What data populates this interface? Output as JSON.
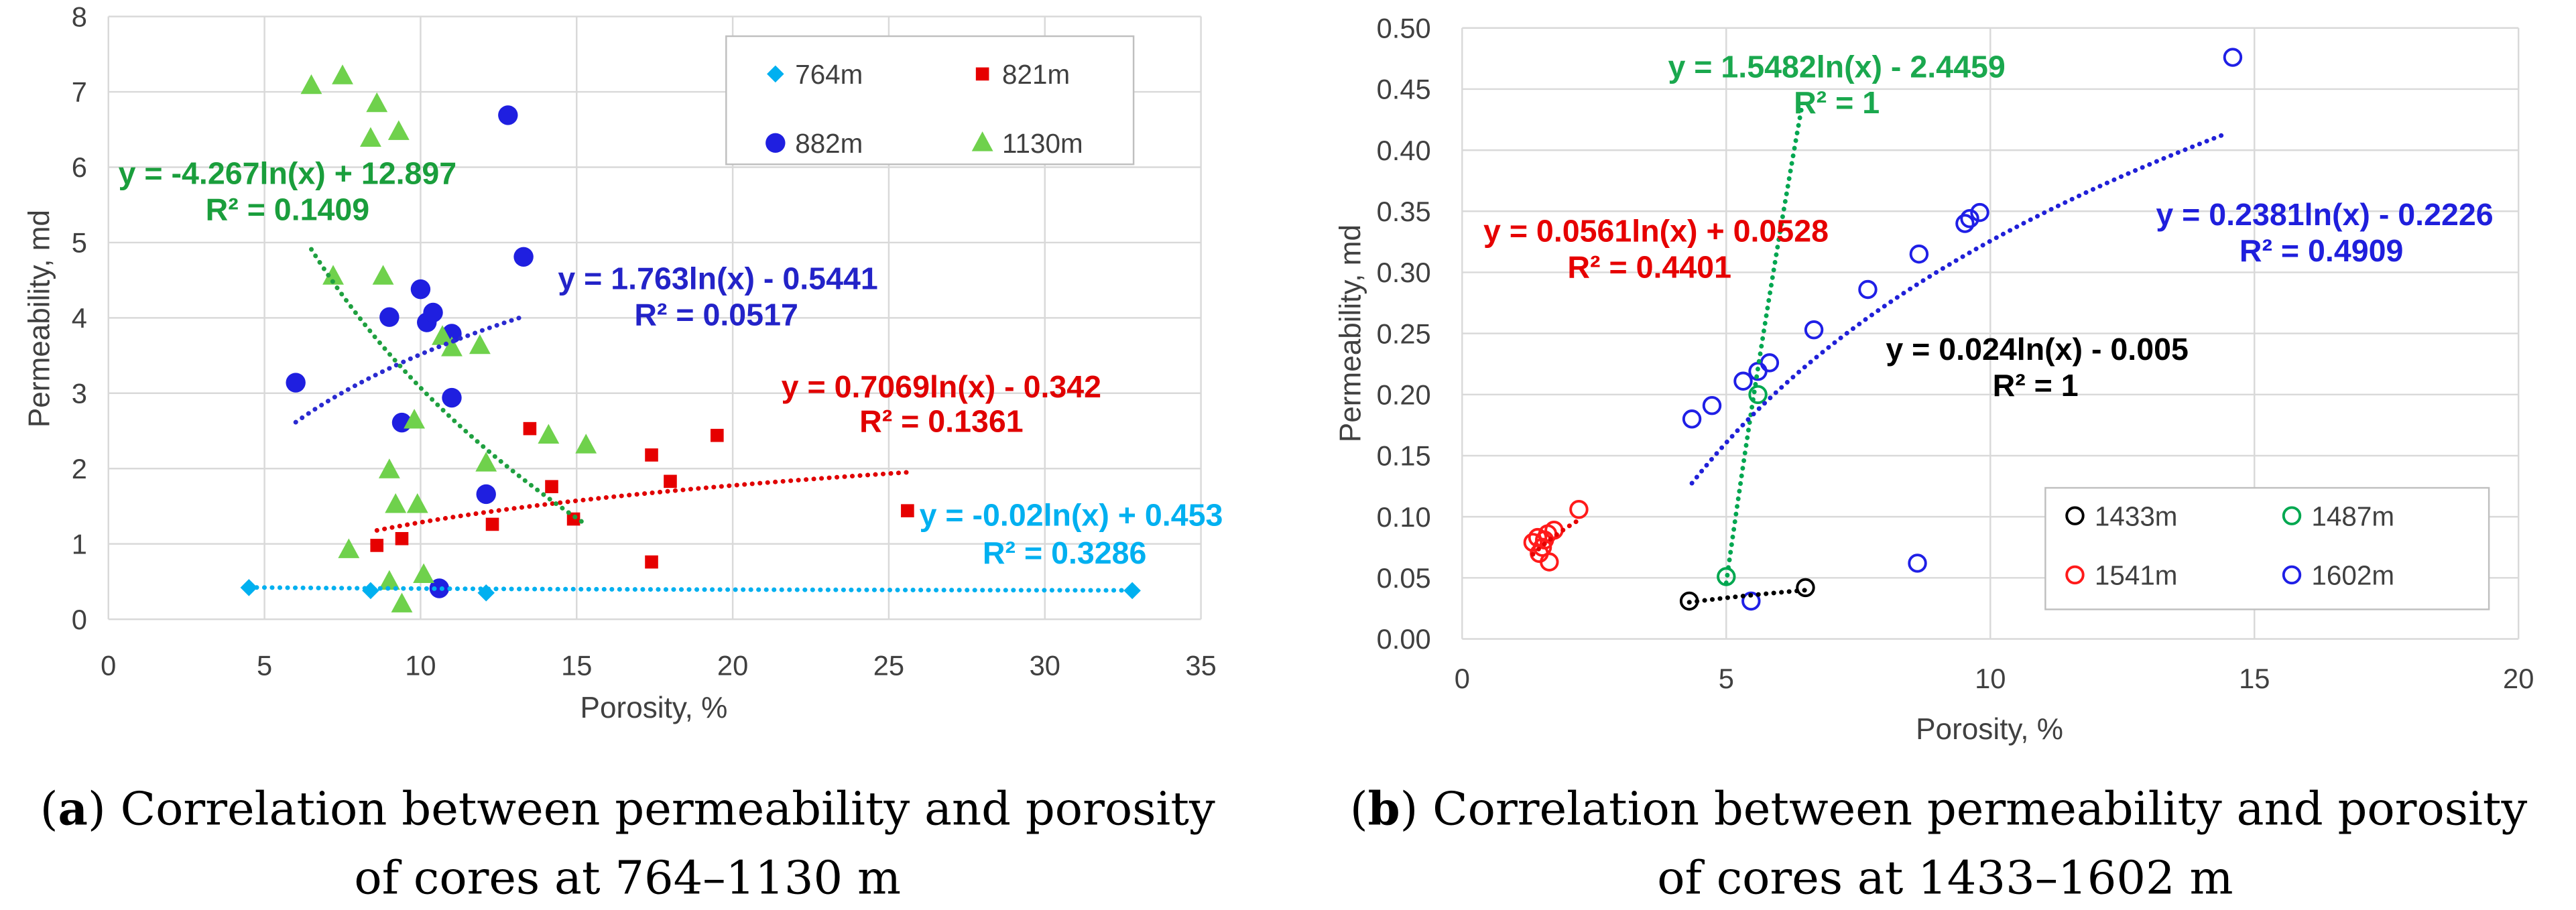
{
  "chart_data": [
    {
      "type": "scatter",
      "xlabel": "Porosity, %",
      "ylabel": "Permeability, md",
      "xlim": [
        0,
        35
      ],
      "ylim": [
        0,
        8
      ],
      "xticks": [
        0,
        5,
        10,
        15,
        20,
        25,
        30,
        35
      ],
      "xtick_labels": [
        "0",
        "5",
        "10",
        "15",
        "20",
        "25",
        "30",
        "35"
      ],
      "yticks": [
        0,
        1,
        2,
        3,
        4,
        5,
        6,
        7,
        8
      ],
      "ytick_labels": [
        "0",
        "1",
        "2",
        "3",
        "4",
        "5",
        "6",
        "7",
        "8"
      ],
      "grid": true,
      "legend_position": "top-right",
      "series": [
        {
          "name": "764m",
          "marker": "diamond",
          "filled": true,
          "color": "#00B0F0",
          "trend_color": "#00B0F0",
          "label_color": "#00B0F0",
          "points": [
            [
              4.5,
              0.42
            ],
            [
              8.4,
              0.38
            ],
            [
              12.1,
              0.35
            ],
            [
              32.8,
              0.38
            ]
          ],
          "trend": {
            "type": "log",
            "a": -0.02,
            "b": 0.453,
            "x_range": [
              4.5,
              32.8
            ]
          },
          "equation": "y = -0.02ln(x) + 0.453",
          "r2": "R² = 0.3286"
        },
        {
          "name": "821m",
          "marker": "square",
          "filled": true,
          "color": "#E60000",
          "trend_color": "#E00000",
          "label_color": "#E00000",
          "points": [
            [
              8.6,
              0.98
            ],
            [
              9.4,
              1.07
            ],
            [
              12.3,
              1.26
            ],
            [
              13.5,
              2.53
            ],
            [
              14.2,
              1.76
            ],
            [
              14.9,
              1.33
            ],
            [
              17.4,
              2.18
            ],
            [
              17.4,
              0.76
            ],
            [
              18.0,
              1.83
            ],
            [
              19.5,
              2.44
            ],
            [
              25.6,
              1.44
            ]
          ],
          "trend": {
            "type": "log",
            "a": 0.7069,
            "b": -0.342,
            "x_range": [
              8.6,
              25.6
            ]
          },
          "equation": "y = 0.7069ln(x) - 0.342",
          "r2": "R² = 0.1361"
        },
        {
          "name": "882m",
          "marker": "circle",
          "filled": true,
          "color": "#1F1FE0",
          "trend_color": "#2A2AD0",
          "label_color": "#2323C8",
          "points": [
            [
              6.0,
              3.14
            ],
            [
              9.0,
              4.01
            ],
            [
              9.4,
              2.61
            ],
            [
              10.0,
              4.38
            ],
            [
              10.2,
              3.94
            ],
            [
              10.4,
              4.07
            ],
            [
              11.0,
              3.79
            ],
            [
              11.0,
              2.94
            ],
            [
              12.1,
              1.66
            ],
            [
              10.6,
              0.41
            ],
            [
              12.8,
              6.69
            ],
            [
              13.3,
              4.81
            ]
          ],
          "trend": {
            "type": "log",
            "a": 1.763,
            "b": -0.5441,
            "x_range": [
              6.0,
              13.3
            ]
          },
          "equation": "y = 1.763ln(x) - 0.5441",
          "r2": "R² = 0.0517"
        },
        {
          "name": "1130m",
          "marker": "triangle",
          "filled": true,
          "color": "#6FD14C",
          "trend_color": "#1FA040",
          "label_color": "#1A9E3C",
          "points": [
            [
              6.5,
              7.08
            ],
            [
              7.5,
              7.21
            ],
            [
              8.6,
              6.84
            ],
            [
              9.3,
              6.47
            ],
            [
              8.4,
              6.38
            ],
            [
              7.2,
              4.55
            ],
            [
              8.8,
              4.55
            ],
            [
              9.0,
              1.98
            ],
            [
              9.2,
              1.52
            ],
            [
              9.9,
              1.52
            ],
            [
              7.7,
              0.92
            ],
            [
              9.0,
              0.5
            ],
            [
              9.4,
              0.2
            ],
            [
              10.1,
              0.59
            ],
            [
              9.8,
              2.64
            ],
            [
              10.7,
              3.75
            ],
            [
              11.0,
              3.6
            ],
            [
              11.9,
              3.63
            ],
            [
              12.1,
              2.07
            ],
            [
              14.1,
              2.44
            ],
            [
              15.3,
              2.31
            ]
          ],
          "trend": {
            "type": "log",
            "a": -4.267,
            "b": 12.897,
            "x_range": [
              6.5,
              15.3
            ]
          },
          "equation": "y = -4.267ln(x) + 12.897",
          "r2": "R² = 0.1409"
        }
      ]
    },
    {
      "type": "scatter",
      "xlabel": "Porosity, %",
      "ylabel": "Permeability, md",
      "xlim": [
        0,
        20
      ],
      "ylim": [
        0,
        0.5
      ],
      "xticks": [
        0,
        5,
        10,
        15,
        20
      ],
      "xtick_labels": [
        "0",
        "5",
        "10",
        "15",
        "20"
      ],
      "yticks": [
        0,
        0.05,
        0.1,
        0.15,
        0.2,
        0.25,
        0.3,
        0.35,
        0.4,
        0.45,
        0.5
      ],
      "ytick_labels": [
        "0.00",
        "0.05",
        "0.10",
        "0.15",
        "0.20",
        "0.25",
        "0.30",
        "0.35",
        "0.40",
        "0.45",
        "0.50"
      ],
      "grid": true,
      "legend_position": "bottom-right",
      "series": [
        {
          "name": "1433m",
          "marker": "circle",
          "filled": false,
          "color": "#000000",
          "trend_color": "#000000",
          "label_color": "#000000",
          "points": [
            [
              4.3,
              0.031
            ],
            [
              6.5,
              0.042
            ]
          ],
          "trend": {
            "type": "log",
            "a": 0.024,
            "b": -0.005,
            "x_range": [
              4.3,
              6.5
            ]
          },
          "equation": "y = 0.024ln(x) - 0.005",
          "r2": "R² = 1"
        },
        {
          "name": "1487m",
          "marker": "circle",
          "filled": false,
          "color": "#00A850",
          "trend_color": "#00A650",
          "label_color": "#1AA84E",
          "points": [
            [
              5.0,
              0.051
            ],
            [
              5.6,
              0.2
            ]
          ],
          "trend": {
            "type": "log",
            "a": 1.5482,
            "b": -2.4459,
            "x_range": [
              5.0,
              6.44
            ]
          },
          "equation": "y = 1.5482ln(x) - 2.4459",
          "r2": "R² = 1"
        },
        {
          "name": "1541m",
          "marker": "circle",
          "filled": false,
          "color": "#FF1A1A",
          "trend_color": "#E60000",
          "label_color": "#E60000",
          "points": [
            [
              1.34,
              0.079
            ],
            [
              1.43,
              0.083
            ],
            [
              1.52,
              0.075
            ],
            [
              1.46,
              0.07
            ],
            [
              1.62,
              0.086
            ],
            [
              1.74,
              0.089
            ],
            [
              1.65,
              0.063
            ],
            [
              1.56,
              0.081
            ],
            [
              2.21,
              0.106
            ]
          ],
          "trend": {
            "type": "log",
            "a": 0.0561,
            "b": 0.0528,
            "x_range": [
              1.34,
              2.21
            ]
          },
          "equation": "y = 0.0561ln(x) + 0.0528",
          "r2": "R² = 0.4401"
        },
        {
          "name": "1602m",
          "marker": "circle",
          "filled": false,
          "color": "#1F1FE6",
          "trend_color": "#2020D8",
          "label_color": "#1F1FDC",
          "points": [
            [
              4.35,
              0.18
            ],
            [
              4.73,
              0.191
            ],
            [
              5.32,
              0.211
            ],
            [
              5.6,
              0.219
            ],
            [
              5.82,
              0.226
            ],
            [
              5.47,
              0.031
            ],
            [
              6.66,
              0.253
            ],
            [
              7.68,
              0.286
            ],
            [
              8.65,
              0.315
            ],
            [
              9.52,
              0.34
            ],
            [
              9.61,
              0.344
            ],
            [
              9.8,
              0.349
            ],
            [
              8.62,
              0.062
            ],
            [
              14.59,
              0.476
            ]
          ],
          "trend": {
            "type": "log",
            "a": 0.2381,
            "b": -0.2226,
            "x_range": [
              4.35,
              14.5
            ]
          },
          "equation": "y = 0.2381ln(x) - 0.2226",
          "r2": "R² = 0.4909"
        }
      ]
    }
  ],
  "captions": [
    {
      "open": "(",
      "label": "a",
      "close": ")",
      "title": "Correlation between permeability and porosity",
      "line2": "of cores at 764–1130 m"
    },
    {
      "open": "(",
      "label": "b",
      "close": ")",
      "title": "Correlation between permeability and porosity",
      "line2": "of cores at 1433–1602 m"
    }
  ]
}
